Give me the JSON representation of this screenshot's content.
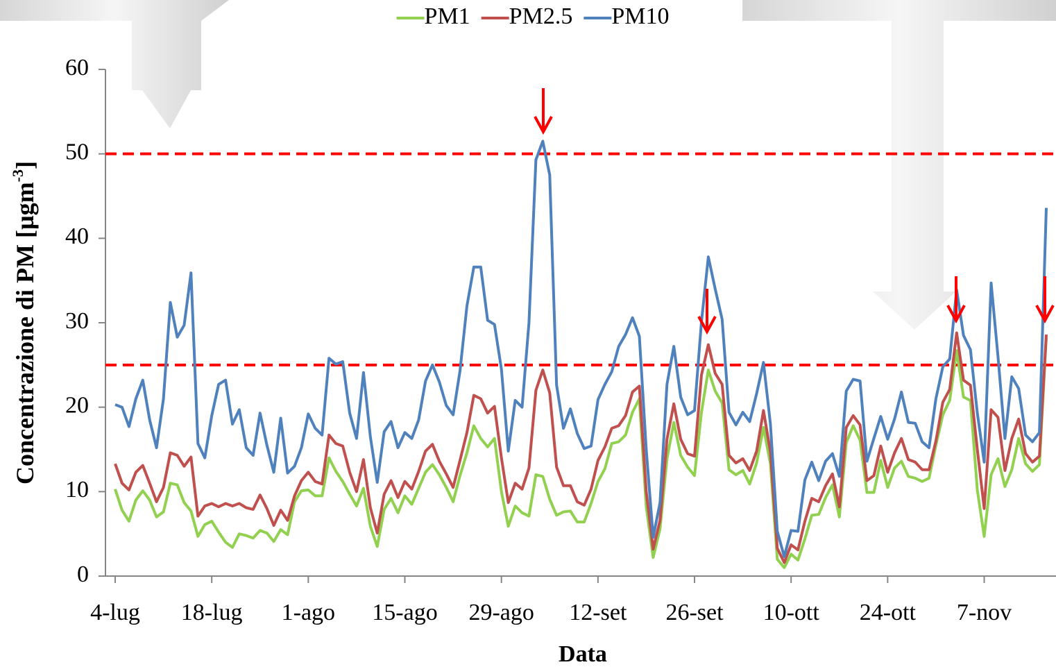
{
  "chart_data": {
    "type": "line",
    "x_label": "Data",
    "y_label": "Concentrazione di PM [µgm",
    "y_label_sup": "-3",
    "y_label_end": "]",
    "categories": [
      "4-lug",
      null,
      null,
      null,
      null,
      null,
      null,
      null,
      null,
      null,
      null,
      null,
      null,
      null,
      "18-lug",
      null,
      null,
      null,
      null,
      null,
      null,
      null,
      null,
      null,
      null,
      null,
      null,
      null,
      "1-ago",
      null,
      null,
      null,
      null,
      null,
      null,
      null,
      null,
      null,
      null,
      null,
      null,
      null,
      "15-ago",
      null,
      null,
      null,
      null,
      null,
      null,
      null,
      null,
      null,
      null,
      null,
      null,
      null,
      "29-ago",
      null,
      null,
      null,
      null,
      null,
      null,
      null,
      null,
      null,
      null,
      null,
      null,
      null,
      "12-set",
      null,
      null,
      null,
      null,
      null,
      null,
      null,
      null,
      null,
      null,
      null,
      null,
      null,
      "26-set",
      null,
      null,
      null,
      null,
      null,
      null,
      null,
      null,
      null,
      null,
      null,
      null,
      null,
      "10-ott",
      null,
      null,
      null,
      null,
      null,
      null,
      null,
      null,
      null,
      null,
      null,
      null,
      null,
      "24-ott",
      null,
      null,
      null,
      null,
      null,
      null,
      null,
      null,
      null,
      null,
      null,
      null,
      null,
      "7-nov",
      null,
      null,
      null,
      null,
      null,
      null,
      null,
      null,
      null
    ],
    "series": [
      {
        "name": "PM1",
        "color": "#92d050",
        "values": [
          10.3,
          7.8,
          6.5,
          9,
          10.1,
          9,
          7,
          7.6,
          11,
          10.8,
          8.7,
          7.7,
          4.7,
          6.1,
          6.5,
          5.2,
          4,
          3.4,
          5,
          4.8,
          4.5,
          5.4,
          5.1,
          4.1,
          5.5,
          4.9,
          8.8,
          10.1,
          10.2,
          9.5,
          9.5,
          14,
          12.4,
          11.2,
          9.7,
          8.3,
          10.4,
          5.9,
          3.5,
          7.9,
          9.2,
          7.5,
          9.5,
          8.5,
          10.4,
          12.3,
          13.2,
          12,
          10.5,
          8.8,
          11.9,
          14.6,
          17.8,
          16.3,
          15.3,
          16.3,
          10,
          5.9,
          8.3,
          7.5,
          7.1,
          12,
          11.8,
          9.1,
          7.2,
          7.6,
          7.7,
          6.4,
          6.4,
          8.6,
          11.2,
          12.7,
          15.7,
          15.9,
          16.7,
          19.4,
          21,
          8.2,
          2.2,
          5.6,
          13.9,
          18.2,
          14.3,
          12.9,
          11.9,
          19.4,
          24.4,
          21.9,
          20.5,
          12.6,
          12,
          12.5,
          10.9,
          13.4,
          17.6,
          13.3,
          2,
          1,
          2.6,
          1.9,
          4.4,
          7.2,
          7.3,
          9.3,
          10.8,
          7,
          15.8,
          17.8,
          16.1,
          9.9,
          9.9,
          13.7,
          10.5,
          12.8,
          13.6,
          11.8,
          11.6,
          11.2,
          11.6,
          15.5,
          19.1,
          20.8,
          26.7,
          21.2,
          20.8,
          10.2,
          4.7,
          12,
          13.9,
          10.6,
          12.6,
          16.3,
          13.3,
          12.4,
          13.2,
          28.3
        ]
      },
      {
        "name": "PM2.5",
        "color": "#c0504d",
        "values": [
          13.3,
          11,
          10.2,
          12.3,
          13.1,
          11,
          8.8,
          10.5,
          14.6,
          14.3,
          13,
          14.1,
          7.1,
          8.3,
          8.6,
          8.2,
          8.6,
          8.3,
          8.6,
          8.1,
          7.9,
          9.6,
          8,
          6,
          7.8,
          6.6,
          9.5,
          11.3,
          12.3,
          11.2,
          10.9,
          16.7,
          15.7,
          15.4,
          12.3,
          10,
          13.8,
          8.1,
          5.1,
          9.7,
          11.3,
          9.3,
          11.2,
          10.3,
          12.4,
          14.8,
          15.6,
          13.6,
          12.1,
          10.5,
          13.7,
          17,
          21.4,
          21,
          19.3,
          20.1,
          14,
          8.7,
          11,
          10.3,
          12.8,
          22,
          24.4,
          21.7,
          12.9,
          10.7,
          10.7,
          8.8,
          8.4,
          10.3,
          13.7,
          15.3,
          17.5,
          17.8,
          19,
          21.8,
          22.5,
          10,
          3.2,
          6.6,
          16.2,
          20.4,
          16.2,
          14.5,
          14.2,
          23.8,
          27.4,
          24,
          22.7,
          14.3,
          13.4,
          13.9,
          12.5,
          14.8,
          19.6,
          14.7,
          3.3,
          1.6,
          3.7,
          3.1,
          6.5,
          9.2,
          8.8,
          10.7,
          12.1,
          8.2,
          17.6,
          19,
          17.9,
          11.3,
          11.9,
          15.4,
          12.3,
          14.6,
          16.3,
          13.8,
          13.5,
          12.6,
          12.6,
          16,
          20.6,
          22.1,
          28.8,
          23.2,
          22.6,
          15,
          8,
          19.7,
          18.8,
          12.5,
          16.3,
          18.6,
          14.5,
          13.5,
          14.2,
          28.6
        ]
      },
      {
        "name": "PM10",
        "color": "#4f81bd",
        "values": [
          20.3,
          20,
          17.7,
          21,
          23.2,
          18.5,
          15.2,
          21,
          32.4,
          28.3,
          29.7,
          35.9,
          15.7,
          14,
          19,
          22.7,
          23.2,
          18,
          19.7,
          15.2,
          14.3,
          19.3,
          15.5,
          12.3,
          18.7,
          12.2,
          13,
          15.2,
          19.2,
          17.5,
          16.7,
          25.8,
          25.1,
          25.4,
          19.3,
          16.3,
          24.1,
          16.5,
          11.1,
          17.1,
          18.3,
          15.2,
          17,
          16.3,
          18.5,
          23.1,
          25,
          23,
          20.2,
          19.1,
          24.3,
          32,
          36.6,
          36.6,
          30.3,
          29.8,
          24.5,
          14.8,
          20.8,
          20,
          30,
          49.3,
          51.5,
          47.5,
          22.6,
          17.5,
          19.8,
          16.9,
          15.1,
          15.4,
          20.9,
          22.7,
          24.2,
          27.2,
          28.6,
          30.6,
          28.4,
          15,
          4.6,
          8.7,
          22.7,
          27.2,
          21.2,
          19.1,
          19.6,
          30.1,
          37.8,
          34,
          30.4,
          19.4,
          17.9,
          19.4,
          18.3,
          21.6,
          25.3,
          18,
          5.3,
          2.3,
          5.4,
          5.3,
          11.4,
          13.5,
          11.3,
          13.6,
          14.5,
          11.8,
          21.9,
          23.3,
          23.1,
          13.6,
          16.3,
          18.9,
          16.2,
          18.6,
          21.8,
          18.2,
          18.1,
          15.9,
          15.2,
          21,
          24.8,
          25.7,
          33.9,
          28.5,
          26.8,
          19.3,
          13.5,
          34.7,
          26,
          16.3,
          23.6,
          22.2,
          16.7,
          15.9,
          17,
          43.6
        ]
      }
    ],
    "reference_lines": [
      50,
      25
    ],
    "reference_color": "#ff0000",
    "ylim": [
      0,
      60
    ],
    "yticks": [
      0,
      10,
      20,
      30,
      40,
      50,
      60
    ]
  }
}
